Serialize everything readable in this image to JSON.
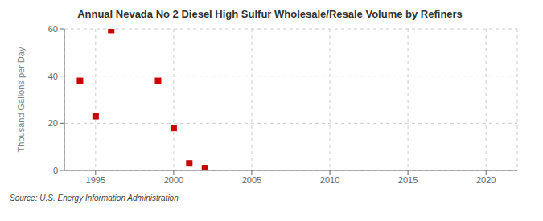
{
  "chart_data": {
    "type": "scatter",
    "title": "Annual Nevada No 2 Diesel High Sulfur Wholesale/Resale Volume by Refiners",
    "ylabel": "Thousand Gallons per Day",
    "annotation": "Source: U.S. Energy Information Administration",
    "x": [
      1994,
      1995,
      1996,
      1999,
      2000,
      2001,
      2002
    ],
    "values": [
      38.0,
      23.0,
      59.5,
      38.0,
      18.0,
      3.0,
      1.0
    ],
    "color": "#cc0000",
    "marker": "square",
    "xlim": [
      1993,
      2022
    ],
    "xticks": [
      1995,
      2000,
      2005,
      2010,
      2015,
      2020
    ],
    "ylim": [
      0,
      60
    ],
    "yticks": [
      0,
      20,
      40,
      60
    ],
    "grid": true
  }
}
